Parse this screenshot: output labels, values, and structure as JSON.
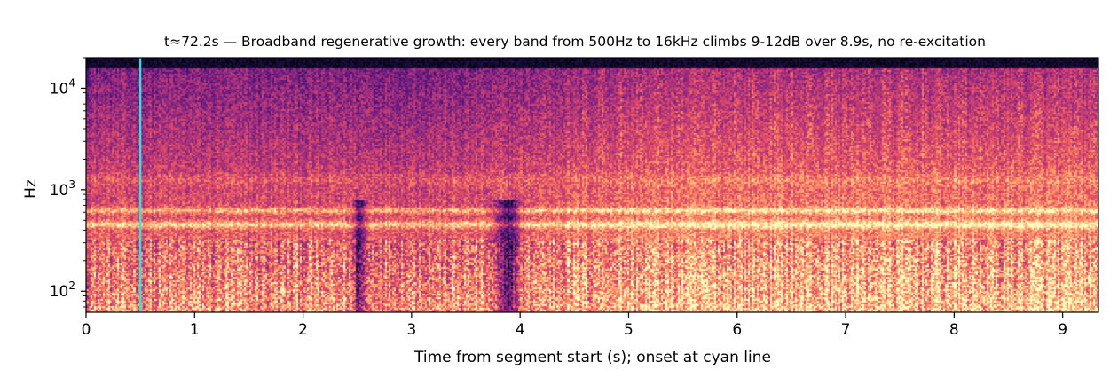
{
  "chart_data": {
    "type": "heatmap",
    "subtype": "spectrogram",
    "title": "t≈72.2s — Broadband regenerative growth: every band from 500Hz to 16kHz climbs 9-12dB over 8.9s, no re-excitation",
    "xlabel": "Time from segment start (s); onset at cyan line",
    "ylabel": "Hz",
    "x_scale": "linear",
    "y_scale": "log",
    "xlim": [
      0,
      9.33
    ],
    "ylim": [
      62,
      20000
    ],
    "x_ticks": [
      {
        "value": 0,
        "label": "0"
      },
      {
        "value": 1,
        "label": "1"
      },
      {
        "value": 2,
        "label": "2"
      },
      {
        "value": 3,
        "label": "3"
      },
      {
        "value": 4,
        "label": "4"
      },
      {
        "value": 5,
        "label": "5"
      },
      {
        "value": 6,
        "label": "6"
      },
      {
        "value": 7,
        "label": "7"
      },
      {
        "value": 8,
        "label": "8"
      },
      {
        "value": 9,
        "label": "9"
      }
    ],
    "y_ticks": [
      {
        "value": 100,
        "base": "10",
        "exp": "2"
      },
      {
        "value": 1000,
        "base": "10",
        "exp": "3"
      },
      {
        "value": 10000,
        "base": "10",
        "exp": "4"
      }
    ],
    "colormap": "magma",
    "onset_marker": {
      "x": 0.5,
      "color": "#2ee6e6"
    },
    "colorbar": false,
    "grid": false,
    "approx_features": {
      "spectral_ceiling_hz": 16000,
      "bright_bands_hz": [
        450,
        620
      ],
      "dark_low_freq_events_s": [
        2.5,
        3.9
      ],
      "level_increase_after_s": 4.3
    }
  }
}
